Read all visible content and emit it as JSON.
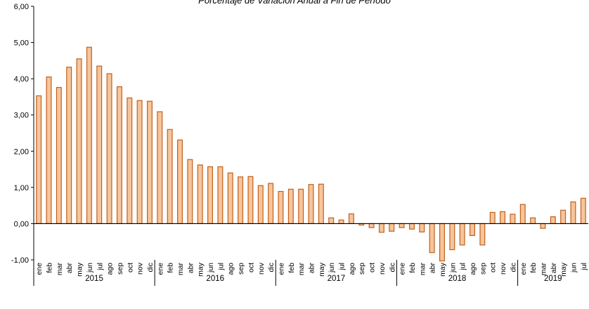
{
  "chart_data": {
    "type": "bar",
    "title": "Porcentaje de Variación Anual a Fin de Período",
    "xlabel": "",
    "ylabel": "",
    "ylim": [
      -1.0,
      6.0
    ],
    "yticks": [
      "-1,00",
      "0,00",
      "1,00",
      "2,00",
      "3,00",
      "4,00",
      "5,00",
      "6,00"
    ],
    "grid": false,
    "legend": "none",
    "colors": {
      "fill": "#F6C59B",
      "stroke": "#C0601E",
      "axis": "#000000"
    },
    "categories": [
      "ene",
      "feb",
      "mar",
      "abr",
      "may",
      "jun",
      "jul",
      "ago",
      "sep",
      "oct",
      "nov",
      "dic",
      "ene",
      "feb",
      "mar",
      "abr",
      "may",
      "jun",
      "jul",
      "ago",
      "sep",
      "oct",
      "nov",
      "dic",
      "ene",
      "feb",
      "mar",
      "abr",
      "may",
      "jun",
      "jul",
      "ago",
      "sep",
      "oct",
      "nov",
      "dic",
      "ene",
      "feb",
      "mar",
      "abr",
      "may",
      "jun",
      "jul",
      "ago",
      "sep",
      "oct",
      "nov",
      "dic",
      "ene",
      "feb",
      "mar",
      "abr",
      "may",
      "jun",
      "jul"
    ],
    "years": [
      {
        "label": "2015",
        "count": 12
      },
      {
        "label": "2016",
        "count": 12
      },
      {
        "label": "2017",
        "count": 12
      },
      {
        "label": "2018",
        "count": 12
      },
      {
        "label": "2019",
        "count": 7
      }
    ],
    "values": [
      3.53,
      4.05,
      3.76,
      4.32,
      4.55,
      4.87,
      4.35,
      4.14,
      3.78,
      3.47,
      3.4,
      3.38,
      3.09,
      2.6,
      2.31,
      1.77,
      1.62,
      1.57,
      1.57,
      1.4,
      1.29,
      1.3,
      1.05,
      1.11,
      0.89,
      0.95,
      0.95,
      1.08,
      1.09,
      0.16,
      0.1,
      0.27,
      -0.04,
      -0.11,
      -0.24,
      -0.21,
      -0.11,
      -0.15,
      -0.23,
      -0.8,
      -1.03,
      -0.72,
      -0.59,
      -0.33,
      -0.59,
      0.31,
      0.33,
      0.26,
      0.53,
      0.16,
      -0.13,
      0.19,
      0.37,
      0.6,
      0.7
    ]
  }
}
